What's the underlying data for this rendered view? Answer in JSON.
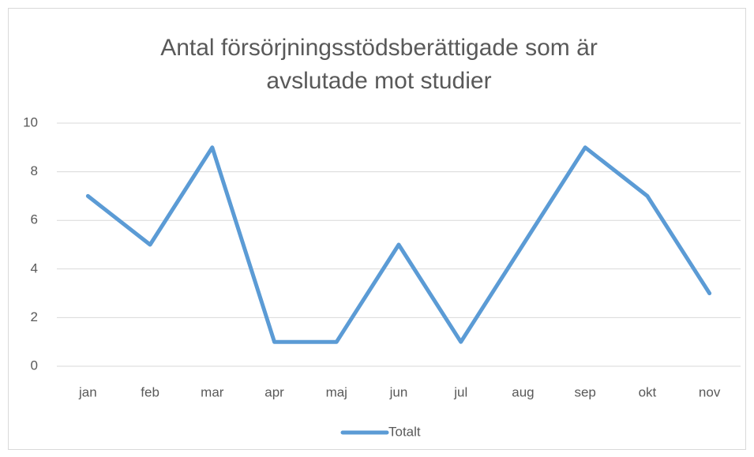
{
  "chart_data": {
    "type": "line",
    "title": "Antal försörjningsstödsberättigade som är avslutade mot studier",
    "categories": [
      "jan",
      "feb",
      "mar",
      "apr",
      "maj",
      "jun",
      "jul",
      "aug",
      "sep",
      "okt",
      "nov"
    ],
    "series": [
      {
        "name": "Totalt",
        "color": "#5b9bd5",
        "values": [
          7,
          5,
          9,
          1,
          1,
          5,
          1,
          5,
          9,
          7,
          3
        ]
      }
    ],
    "ylim": [
      0,
      10
    ],
    "yticks": [
      0,
      2,
      4,
      6,
      8,
      10
    ],
    "grid": true,
    "legend": "bottom"
  }
}
